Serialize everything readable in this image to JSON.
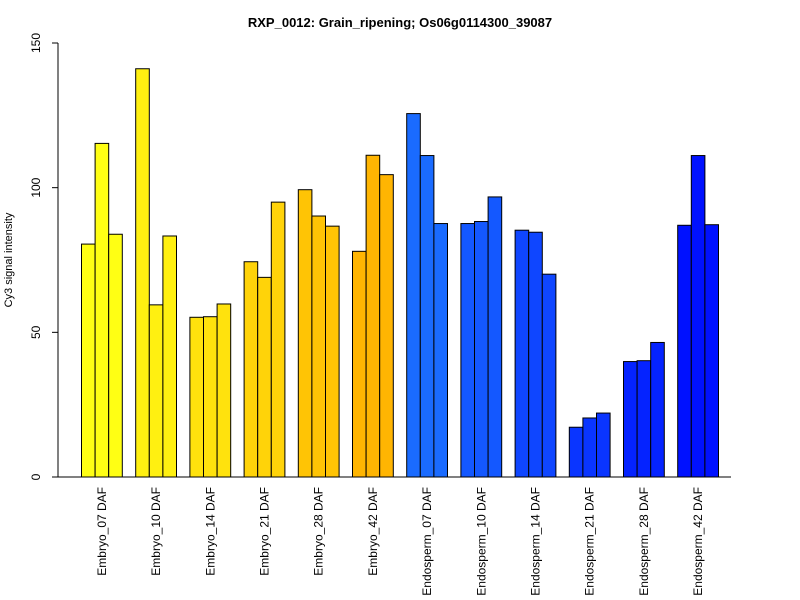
{
  "chart_data": {
    "type": "bar",
    "title": "RXP_0012: Grain_ripening; Os06g0114300_39087",
    "xlabel": "",
    "ylabel": "Cy3 signal intensity",
    "ylim": [
      0,
      150
    ],
    "yticks": [
      0,
      50,
      100,
      150
    ],
    "grid": false,
    "categories": [
      "Embryo_07 DAF",
      "Embryo_10 DAF",
      "Embryo_14 DAF",
      "Embryo_21 DAF",
      "Embryo_28 DAF",
      "Embryo_42 DAF",
      "Endosperm_07 DAF",
      "Endosperm_10 DAF",
      "Endosperm_14 DAF",
      "Endosperm_21 DAF",
      "Endosperm_28 DAF",
      "Endosperm_42 DAF"
    ],
    "colors": [
      "#FFFF14",
      "#FFF011",
      "#FFE20D",
      "#FFD309",
      "#FFC405",
      "#FFB502",
      "#1A6BFF",
      "#1458FF",
      "#0F46FF",
      "#0A35FF",
      "#0523FF",
      "#0011FF"
    ],
    "groups": [
      [
        80.5,
        115.3,
        83.9
      ],
      [
        141.1,
        59.5,
        83.3
      ],
      [
        55.2,
        55.4,
        59.8
      ],
      [
        74.4,
        69.0,
        95.0
      ],
      [
        99.3,
        90.2,
        86.7
      ],
      [
        78.0,
        111.2,
        104.5
      ],
      [
        125.6,
        111.1,
        87.6
      ],
      [
        87.6,
        88.3,
        96.8
      ],
      [
        85.3,
        84.6,
        70.1
      ],
      [
        17.2,
        20.4,
        22.1
      ],
      [
        39.9,
        40.2,
        46.5
      ],
      [
        87.0,
        111.1,
        87.2
      ]
    ]
  }
}
